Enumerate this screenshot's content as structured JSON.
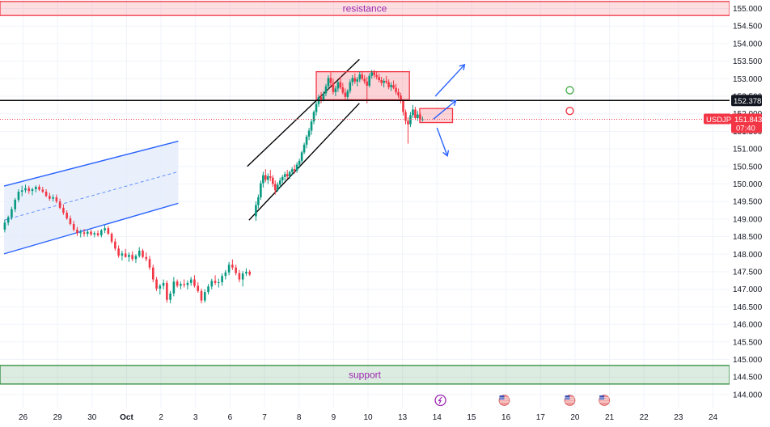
{
  "chart_data": {
    "type": "candlestick",
    "symbol": "USDJPY",
    "y_axis": {
      "ticks": [
        "155.000",
        "154.500",
        "154.000",
        "153.500",
        "153.000",
        "152.500",
        "152.000",
        "151.500",
        "151.000",
        "150.500",
        "150.000",
        "149.500",
        "149.000",
        "148.500",
        "148.000",
        "147.500",
        "147.000",
        "146.500",
        "146.000",
        "145.500",
        "145.000",
        "144.500",
        "144.000"
      ],
      "range": [
        144.0,
        155.0
      ],
      "position": "right"
    },
    "x_axis": {
      "ticks": [
        "26",
        "29",
        "30",
        "Oct",
        "2",
        "3",
        "6",
        "7",
        "8",
        "9",
        "10",
        "13",
        "14",
        "15",
        "16",
        "17",
        "20",
        "21",
        "22",
        "23",
        "24"
      ],
      "range": [
        0,
        20.85
      ]
    },
    "grid": true,
    "current_price": {
      "label": "USDJPY",
      "value": "151.843",
      "countdown": "07:40",
      "color": "#f23645"
    },
    "marked_level": {
      "value": "152.378",
      "color": "#000000"
    },
    "zones": [
      {
        "label": "resistance",
        "from": 154.8,
        "to": 155.2,
        "color": "#f23645"
      },
      {
        "label": "support",
        "from": 144.3,
        "to": 144.83,
        "color": "#2e8b3d"
      }
    ],
    "rectangles": [
      {
        "x": [
          8.5,
          11.2
        ],
        "y": [
          152.4,
          153.2
        ],
        "color": "#f23645"
      },
      {
        "x": [
          11.5,
          12.45
        ],
        "y": [
          151.75,
          152.15
        ],
        "color": "#f23645"
      }
    ],
    "channels": [
      {
        "kind": "ascending",
        "color": "#2962ff",
        "fill": "#e3ecfb",
        "upper": [
          [
            -0.55,
            149.94
          ],
          [
            4.5,
            151.22
          ]
        ],
        "lower": [
          [
            -0.55,
            148.01
          ],
          [
            4.5,
            149.45
          ]
        ],
        "mid": [
          [
            -0.55,
            148.97
          ],
          [
            4.5,
            150.35
          ]
        ]
      },
      {
        "kind": "ascending",
        "color": "#000000",
        "upper": [
          [
            6.5,
            150.5
          ],
          [
            9.75,
            153.55
          ]
        ],
        "lower": [
          [
            6.55,
            148.97
          ],
          [
            9.75,
            152.3
          ]
        ]
      }
    ],
    "arrows": [
      {
        "from": [
          11.95,
          152.5
        ],
        "to": [
          12.8,
          153.4
        ],
        "color": "#2962ff"
      },
      {
        "from": [
          11.9,
          151.85
        ],
        "to": [
          12.55,
          152.38
        ],
        "color": "#2962ff"
      },
      {
        "from": [
          12.0,
          151.6
        ],
        "to": [
          12.3,
          150.8
        ],
        "color": "#2962ff"
      }
    ],
    "markers": [
      {
        "x": 15.85,
        "y": 152.67,
        "color": "#4caf50"
      },
      {
        "x": 15.85,
        "y": 152.08,
        "color": "#f23645"
      }
    ],
    "event_icons": [
      12.1,
      13.95,
      15.85,
      16.85
    ],
    "candles": [
      [
        -0.53,
        148.7,
        148.98,
        148.62,
        148.9
      ],
      [
        -0.43,
        148.9,
        149.1,
        148.82,
        149.05
      ],
      [
        -0.33,
        149.05,
        149.35,
        148.98,
        149.28
      ],
      [
        -0.23,
        149.28,
        149.6,
        149.2,
        149.55
      ],
      [
        -0.13,
        149.55,
        149.85,
        149.48,
        149.78
      ],
      [
        -0.03,
        149.78,
        149.95,
        149.65,
        149.82
      ],
      [
        0.07,
        149.82,
        149.98,
        149.75,
        149.88
      ],
      [
        0.17,
        149.88,
        149.95,
        149.72,
        149.8
      ],
      [
        0.27,
        149.8,
        149.9,
        149.68,
        149.85
      ],
      [
        0.37,
        149.85,
        149.96,
        149.76,
        149.92
      ],
      [
        0.47,
        149.92,
        149.98,
        149.8,
        149.84
      ],
      [
        0.57,
        149.84,
        149.92,
        149.74,
        149.78
      ],
      [
        0.67,
        149.78,
        149.85,
        149.62,
        149.66
      ],
      [
        0.77,
        149.66,
        149.75,
        149.52,
        149.58
      ],
      [
        0.87,
        149.58,
        149.7,
        149.5,
        149.62
      ],
      [
        0.97,
        149.62,
        149.7,
        149.45,
        149.5
      ],
      [
        1.07,
        149.5,
        149.58,
        149.28,
        149.32
      ],
      [
        1.17,
        149.32,
        149.42,
        149.12,
        149.18
      ],
      [
        1.27,
        149.18,
        149.25,
        148.98,
        149.02
      ],
      [
        1.37,
        149.02,
        149.1,
        148.82,
        148.86
      ],
      [
        1.47,
        148.86,
        148.95,
        148.65,
        148.7
      ],
      [
        1.57,
        148.7,
        148.78,
        148.52,
        148.6
      ],
      [
        1.67,
        148.6,
        148.7,
        148.48,
        148.62
      ],
      [
        1.77,
        148.62,
        148.72,
        148.5,
        148.58
      ],
      [
        1.87,
        148.58,
        148.68,
        148.5,
        148.64
      ],
      [
        1.97,
        148.64,
        148.7,
        148.52,
        148.56
      ],
      [
        2.07,
        148.56,
        148.65,
        148.48,
        148.6
      ],
      [
        2.17,
        148.6,
        148.68,
        148.5,
        148.54
      ],
      [
        2.27,
        148.54,
        148.72,
        148.48,
        148.68
      ],
      [
        2.37,
        148.68,
        148.82,
        148.6,
        148.74
      ],
      [
        2.47,
        148.74,
        148.8,
        148.55,
        148.58
      ],
      [
        2.57,
        148.58,
        148.62,
        148.3,
        148.36
      ],
      [
        2.67,
        148.36,
        148.45,
        148.1,
        148.16
      ],
      [
        2.77,
        148.16,
        148.25,
        147.9,
        147.96
      ],
      [
        2.87,
        147.96,
        148.1,
        147.82,
        148.02
      ],
      [
        2.97,
        148.02,
        148.15,
        147.9,
        147.92
      ],
      [
        3.07,
        147.92,
        148.05,
        147.78,
        147.98
      ],
      [
        3.17,
        147.98,
        148.08,
        147.8,
        147.86
      ],
      [
        3.27,
        147.86,
        148.0,
        147.75,
        147.95
      ],
      [
        3.37,
        147.95,
        148.2,
        147.9,
        148.1
      ],
      [
        3.47,
        148.1,
        148.15,
        147.88,
        147.92
      ],
      [
        3.57,
        147.92,
        148.05,
        147.8,
        147.86
      ],
      [
        3.67,
        147.86,
        147.95,
        147.55,
        147.62
      ],
      [
        3.77,
        147.62,
        147.7,
        147.2,
        147.28
      ],
      [
        3.87,
        147.28,
        147.35,
        146.95,
        147.02
      ],
      [
        3.97,
        147.02,
        147.15,
        146.85,
        147.1
      ],
      [
        4.07,
        147.1,
        147.28,
        147.0,
        147.18
      ],
      [
        4.17,
        147.18,
        147.25,
        146.62,
        146.7
      ],
      [
        4.27,
        146.7,
        146.95,
        146.6,
        146.88
      ],
      [
        4.37,
        146.88,
        147.35,
        146.8,
        147.22
      ],
      [
        4.47,
        147.22,
        147.28,
        147.05,
        147.1
      ],
      [
        4.57,
        147.1,
        147.22,
        147.0,
        147.15
      ],
      [
        4.67,
        147.15,
        147.28,
        147.05,
        147.12
      ],
      [
        4.77,
        147.12,
        147.25,
        147.0,
        147.18
      ],
      [
        4.87,
        147.18,
        147.35,
        147.1,
        147.28
      ],
      [
        4.97,
        147.28,
        147.4,
        147.05,
        147.1
      ],
      [
        5.07,
        147.1,
        147.2,
        146.9,
        146.95
      ],
      [
        5.17,
        146.95,
        147.02,
        146.6,
        146.68
      ],
      [
        5.27,
        146.68,
        147.0,
        146.62,
        146.92
      ],
      [
        5.37,
        146.92,
        147.15,
        146.85,
        147.08
      ],
      [
        5.47,
        147.08,
        147.3,
        147.0,
        147.24
      ],
      [
        5.57,
        147.24,
        147.4,
        147.12,
        147.18
      ],
      [
        5.67,
        147.18,
        147.3,
        147.05,
        147.2
      ],
      [
        5.77,
        147.2,
        147.45,
        147.1,
        147.38
      ],
      [
        5.87,
        147.38,
        147.55,
        147.28,
        147.48
      ],
      [
        5.97,
        147.48,
        147.78,
        147.4,
        147.7
      ],
      [
        6.07,
        147.7,
        147.85,
        147.55,
        147.62
      ],
      [
        6.17,
        147.62,
        147.7,
        147.4,
        147.46
      ],
      [
        6.27,
        147.46,
        147.55,
        147.2,
        147.28
      ],
      [
        6.37,
        147.28,
        147.52,
        147.08,
        147.45
      ],
      [
        6.47,
        147.45,
        147.6,
        147.38,
        147.5
      ],
      [
        6.57,
        147.5,
        147.55,
        147.38,
        147.42
      ],
      [
        6.75,
        149.08,
        149.5,
        148.95,
        149.4
      ],
      [
        6.82,
        149.4,
        149.7,
        149.3,
        149.62
      ],
      [
        6.89,
        149.62,
        150.1,
        149.55,
        150.02
      ],
      [
        6.96,
        150.02,
        150.35,
        149.9,
        150.25
      ],
      [
        7.03,
        150.25,
        150.42,
        150.05,
        150.12
      ],
      [
        7.1,
        150.12,
        150.3,
        150.0,
        150.22
      ],
      [
        7.17,
        150.22,
        150.4,
        150.08,
        150.18
      ],
      [
        7.24,
        150.18,
        150.25,
        149.92,
        150.0
      ],
      [
        7.31,
        150.0,
        150.1,
        149.7,
        149.82
      ],
      [
        7.38,
        149.82,
        150.05,
        149.78,
        149.98
      ],
      [
        7.45,
        149.98,
        150.18,
        149.9,
        150.1
      ],
      [
        7.52,
        150.1,
        150.26,
        150.02,
        150.2
      ],
      [
        7.59,
        150.2,
        150.35,
        150.1,
        150.28
      ],
      [
        7.66,
        150.28,
        150.4,
        150.15,
        150.22
      ],
      [
        7.73,
        150.22,
        150.38,
        150.15,
        150.34
      ],
      [
        7.8,
        150.34,
        150.48,
        150.25,
        150.42
      ],
      [
        7.87,
        150.42,
        150.55,
        150.3,
        150.38
      ],
      [
        7.94,
        150.38,
        150.62,
        150.32,
        150.55
      ],
      [
        8.01,
        150.55,
        150.72,
        150.45,
        150.66
      ],
      [
        8.08,
        150.66,
        150.95,
        150.6,
        150.9
      ],
      [
        8.15,
        150.9,
        151.18,
        150.85,
        151.12
      ],
      [
        8.22,
        151.12,
        151.4,
        151.02,
        151.35
      ],
      [
        8.29,
        151.35,
        151.6,
        151.25,
        151.52
      ],
      [
        8.36,
        151.52,
        151.85,
        151.4,
        151.78
      ],
      [
        8.43,
        151.78,
        152.1,
        151.7,
        152.05
      ],
      [
        8.5,
        152.05,
        152.35,
        151.95,
        152.28
      ],
      [
        8.57,
        152.28,
        152.55,
        152.2,
        152.48
      ],
      [
        8.64,
        152.48,
        152.62,
        152.3,
        152.4
      ],
      [
        8.71,
        152.4,
        152.65,
        152.35,
        152.58
      ],
      [
        8.78,
        152.58,
        152.85,
        152.5,
        152.78
      ],
      [
        8.85,
        152.78,
        153.1,
        152.7,
        153.02
      ],
      [
        8.92,
        153.02,
        153.18,
        152.8,
        152.88
      ],
      [
        8.99,
        152.88,
        153.0,
        152.55,
        152.62
      ],
      [
        9.06,
        152.62,
        152.8,
        152.5,
        152.72
      ],
      [
        9.13,
        152.72,
        152.95,
        152.62,
        152.9
      ],
      [
        9.2,
        152.9,
        153.05,
        152.7,
        152.75
      ],
      [
        9.27,
        152.75,
        152.88,
        152.55,
        152.6
      ],
      [
        9.34,
        152.6,
        152.72,
        152.4,
        152.48
      ],
      [
        9.41,
        152.48,
        152.7,
        152.4,
        152.65
      ],
      [
        9.48,
        152.65,
        152.98,
        152.58,
        152.9
      ],
      [
        9.55,
        152.9,
        153.1,
        152.8,
        153.02
      ],
      [
        9.62,
        153.02,
        153.15,
        152.85,
        152.92
      ],
      [
        9.69,
        152.92,
        153.05,
        152.78,
        152.98
      ],
      [
        9.76,
        152.98,
        153.2,
        152.9,
        153.12
      ],
      [
        9.83,
        153.12,
        153.22,
        152.95,
        153.0
      ],
      [
        9.9,
        153.0,
        153.1,
        152.85,
        152.92
      ],
      [
        9.97,
        152.92,
        153.05,
        152.3,
        152.8
      ],
      [
        10.04,
        152.8,
        153.15,
        152.75,
        153.08
      ],
      [
        10.11,
        153.08,
        153.25,
        153.0,
        153.18
      ],
      [
        10.18,
        153.18,
        153.25,
        153.02,
        153.1
      ],
      [
        10.25,
        153.1,
        153.22,
        152.98,
        153.05
      ],
      [
        10.32,
        153.05,
        153.15,
        152.9,
        152.96
      ],
      [
        10.39,
        152.96,
        153.05,
        152.8,
        152.88
      ],
      [
        10.46,
        152.88,
        153.0,
        152.75,
        152.94
      ],
      [
        10.53,
        152.94,
        153.08,
        152.85,
        152.9
      ],
      [
        10.6,
        152.9,
        152.98,
        152.7,
        152.76
      ],
      [
        10.67,
        152.76,
        152.9,
        152.65,
        152.82
      ],
      [
        10.74,
        152.82,
        152.95,
        152.7,
        152.74
      ],
      [
        10.81,
        152.74,
        152.85,
        152.55,
        152.62
      ],
      [
        10.88,
        152.62,
        152.72,
        152.45,
        152.52
      ],
      [
        10.95,
        152.52,
        152.6,
        152.3,
        152.38
      ],
      [
        11.02,
        152.38,
        152.42,
        151.95,
        152.05
      ],
      [
        11.09,
        152.05,
        152.12,
        151.7,
        151.8
      ],
      [
        11.16,
        151.8,
        151.9,
        151.15,
        151.7
      ],
      [
        11.23,
        151.7,
        152.05,
        151.62,
        151.96
      ],
      [
        11.3,
        151.96,
        152.25,
        151.88,
        152.12
      ],
      [
        11.37,
        152.12,
        152.2,
        151.82,
        151.88
      ],
      [
        11.44,
        151.88,
        152.08,
        151.8,
        151.98
      ],
      [
        11.51,
        151.98,
        152.05,
        151.78,
        151.84
      ],
      [
        11.58,
        151.84,
        151.92,
        151.78,
        151.85
      ]
    ]
  }
}
